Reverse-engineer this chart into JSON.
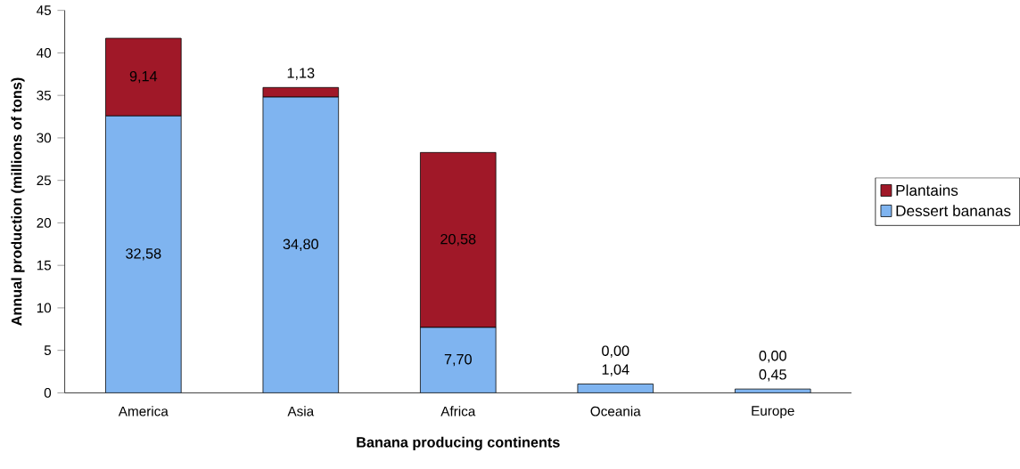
{
  "chart_data": {
    "type": "bar",
    "stacked": true,
    "xlabel": "Banana producing continents",
    "ylabel": "Annual production (millions of tons)",
    "categories": [
      "America",
      "Asia",
      "Africa",
      "Oceania",
      "Europe"
    ],
    "series": [
      {
        "name": "Dessert bananas",
        "color": "#7fb4f0",
        "values": [
          32.58,
          34.8,
          7.7,
          1.04,
          0.45
        ],
        "value_labels": [
          "32,58",
          "34,80",
          "7,70",
          "1,04",
          "0,45"
        ]
      },
      {
        "name": "Plantains",
        "color": "#a01828",
        "values": [
          9.14,
          1.13,
          20.58,
          0.0,
          0.0
        ],
        "value_labels": [
          "9,14",
          "1,13",
          "20,58",
          "0,00",
          "0,00"
        ]
      }
    ],
    "ylim": [
      0,
      45
    ],
    "yticks": [
      0,
      5,
      10,
      15,
      20,
      25,
      30,
      35,
      40,
      45
    ],
    "legend": "right"
  }
}
